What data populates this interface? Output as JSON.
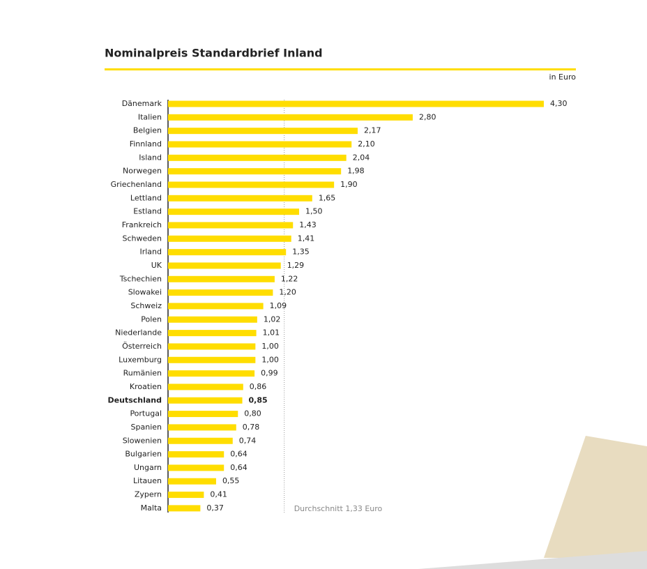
{
  "chart_data": {
    "type": "barh",
    "title": "Nominalpreis Standardbrief Inland",
    "unit_label": "in Euro",
    "categories": [
      "Dänemark",
      "Italien",
      "Belgien",
      "Finnland",
      "Island",
      "Norwegen",
      "Griechenland",
      "Lettland",
      "Estland",
      "Frankreich",
      "Schweden",
      "Irland",
      "UK",
      "Tschechien",
      "Slowakei",
      "Schweiz",
      "Polen",
      "Niederlande",
      "Österreich",
      "Luxemburg",
      "Rumänien",
      "Kroatien",
      "Deutschland",
      "Portugal",
      "Spanien",
      "Slowenien",
      "Bulgarien",
      "Ungarn",
      "Litauen",
      "Zypern",
      "Malta"
    ],
    "values": [
      4.3,
      2.8,
      2.17,
      2.1,
      2.04,
      1.98,
      1.9,
      1.65,
      1.5,
      1.43,
      1.41,
      1.35,
      1.29,
      1.22,
      1.2,
      1.09,
      1.02,
      1.01,
      1.0,
      1.0,
      0.99,
      0.86,
      0.85,
      0.8,
      0.78,
      0.74,
      0.64,
      0.64,
      0.55,
      0.41,
      0.37
    ],
    "value_labels": [
      "4,30",
      "2,80",
      "2,17",
      "2,10",
      "2,04",
      "1,98",
      "1,90",
      "1,65",
      "1,50",
      "1,43",
      "1,41",
      "1,35",
      "1,29",
      "1,22",
      "1,20",
      "1,09",
      "1,02",
      "1,01",
      "1,00",
      "1,00",
      "0,99",
      "0,86",
      "0,85",
      "0,80",
      "0,78",
      "0,74",
      "0,64",
      "0,64",
      "0,55",
      "0,41",
      "0,37"
    ],
    "color": "#ffdd00",
    "highlight": 22,
    "xlim": [
      0,
      4.3
    ],
    "average": 1.33,
    "average_label": "Durchschnitt 1,33 Euro"
  }
}
